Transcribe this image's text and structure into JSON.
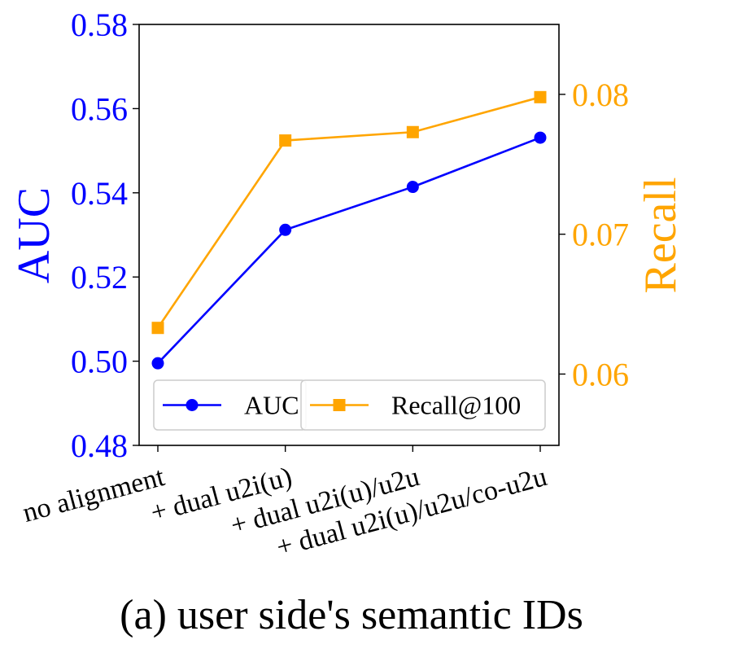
{
  "chart_data": {
    "type": "line",
    "categories": [
      "no alignment",
      "+ dual u2i(u)",
      "+ dual u2i(u)/u2u",
      "+ dual u2i(u)/u2u/co-u2u"
    ],
    "series": [
      {
        "name": "AUC",
        "axis": "left",
        "color": "#0000ff",
        "marker": "circle",
        "values": [
          0.4995,
          0.5312,
          0.5414,
          0.5531
        ]
      },
      {
        "name": "Recall@100",
        "axis": "right",
        "color": "#ffa500",
        "marker": "square",
        "values": [
          0.0633,
          0.0767,
          0.0773,
          0.0798
        ]
      }
    ],
    "left_axis": {
      "label": "AUC",
      "ylim": [
        0.48,
        0.58
      ],
      "ticks": [
        0.48,
        0.5,
        0.52,
        0.54,
        0.56,
        0.58
      ],
      "tick_labels": [
        "0.48",
        "0.50",
        "0.52",
        "0.54",
        "0.56",
        "0.58"
      ],
      "color": "#0000ff"
    },
    "right_axis": {
      "label": "Recall",
      "ylim": [
        0.0549,
        0.085
      ],
      "ticks": [
        0.06,
        0.07,
        0.08
      ],
      "tick_labels": [
        "0.06",
        "0.07",
        "0.08"
      ],
      "color": "#ffa500"
    },
    "legend": {
      "placement": "lower-left",
      "entries": [
        "AUC",
        "Recall@100"
      ]
    },
    "caption": "(a) user side's semantic IDs"
  }
}
